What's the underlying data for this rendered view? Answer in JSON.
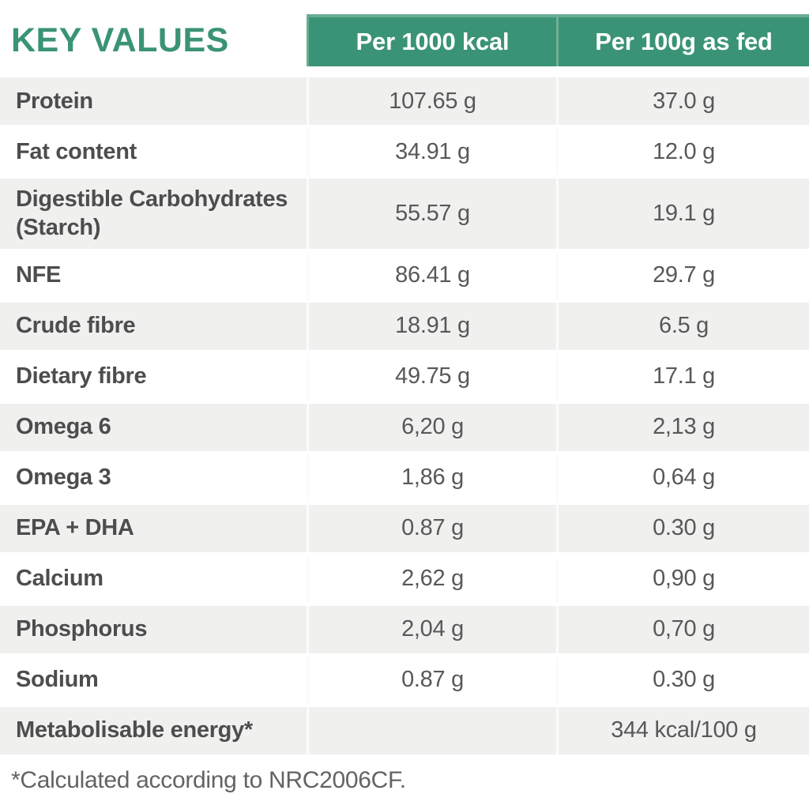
{
  "chart_data": {
    "type": "table",
    "title": "KEY VALUES",
    "columns": [
      "Per 1000 kcal",
      "Per 100g as fed"
    ],
    "rows": [
      {
        "label": "Protein",
        "per_1000_kcal": "107.65 g",
        "per_100g_as_fed": "37.0 g"
      },
      {
        "label": "Fat content",
        "per_1000_kcal": "34.91 g",
        "per_100g_as_fed": "12.0 g"
      },
      {
        "label": "Digestible Carbohydrates\n(Starch)",
        "per_1000_kcal": "55.57 g",
        "per_100g_as_fed": "19.1 g"
      },
      {
        "label": "NFE",
        "per_1000_kcal": "86.41 g",
        "per_100g_as_fed": "29.7 g"
      },
      {
        "label": "Crude fibre",
        "per_1000_kcal": "18.91 g",
        "per_100g_as_fed": "6.5 g"
      },
      {
        "label": "Dietary fibre",
        "per_1000_kcal": "49.75 g",
        "per_100g_as_fed": "17.1 g"
      },
      {
        "label": "Omega 6",
        "per_1000_kcal": "6,20 g",
        "per_100g_as_fed": "2,13 g"
      },
      {
        "label": "Omega 3",
        "per_1000_kcal": "1,86 g",
        "per_100g_as_fed": "0,64 g"
      },
      {
        "label": "EPA + DHA",
        "per_1000_kcal": "0.87 g",
        "per_100g_as_fed": "0.30 g"
      },
      {
        "label": "Calcium",
        "per_1000_kcal": "2,62 g",
        "per_100g_as_fed": "0,90 g"
      },
      {
        "label": "Phosphorus",
        "per_1000_kcal": "2,04 g",
        "per_100g_as_fed": "0,70 g"
      },
      {
        "label": "Sodium",
        "per_1000_kcal": "0.87 g",
        "per_100g_as_fed": "0.30 g"
      },
      {
        "label": "Metabolisable energy*",
        "per_1000_kcal": "",
        "per_100g_as_fed": "344 kcal/100 g"
      }
    ],
    "footnote": "*Calculated according to NRC2006CF.",
    "layout_hints": {
      "row_striping": "odd rows gray, even rows white",
      "header_background": "green",
      "value_alignment": "center"
    }
  },
  "colors": {
    "header_green": "#3A9376",
    "header_green_light_edge": "#67AD92",
    "header_text": "#FFFFFF",
    "title_green": "#3A9376",
    "row_alt_gray": "#F0F0EF",
    "label_text": "#4D4D4F",
    "value_text": "#58585A",
    "footnote_text": "#636363"
  }
}
